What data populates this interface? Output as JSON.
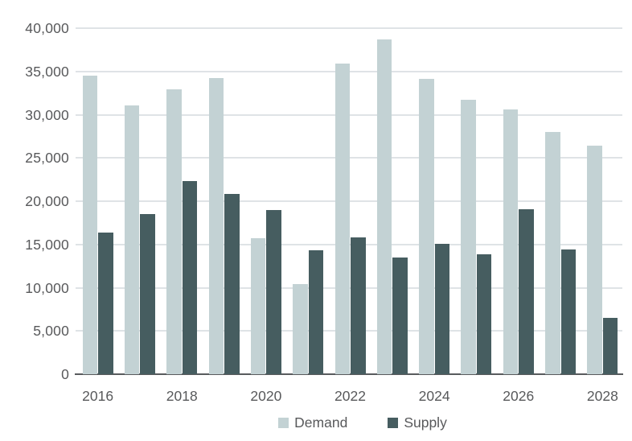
{
  "chart_data": {
    "type": "bar",
    "categories": [
      "2016",
      "2017",
      "2018",
      "2019",
      "2020",
      "2021",
      "2022",
      "2023",
      "2024",
      "2025",
      "2026",
      "2027",
      "2028"
    ],
    "series": [
      {
        "name": "Demand",
        "color": "#c3d2d4",
        "values": [
          34500,
          31100,
          32900,
          34200,
          15700,
          10400,
          35900,
          38700,
          34100,
          31700,
          30600,
          28000,
          26400
        ]
      },
      {
        "name": "Supply",
        "color": "#465d60",
        "values": [
          16400,
          18500,
          22300,
          20800,
          19000,
          14300,
          15800,
          13500,
          15100,
          13900,
          19100,
          14400,
          6500
        ]
      }
    ],
    "title": "",
    "xlabel": "",
    "ylabel": "",
    "ylim": [
      0,
      40000
    ],
    "ytick_step": 5000,
    "ytick_labels": [
      "0",
      "5,000",
      "10,000",
      "15,000",
      "20,000",
      "25,000",
      "30,000",
      "35,000",
      "40,000"
    ],
    "xtick_labels_visible": [
      "2016",
      "2018",
      "2020",
      "2022",
      "2024",
      "2026",
      "2028"
    ],
    "grid": "horizontal",
    "legend_position": "bottom"
  },
  "colors": {
    "grid": "#dfe3e6",
    "axis": "#595b5d",
    "text": "#58595b",
    "background": "#ffffff"
  }
}
